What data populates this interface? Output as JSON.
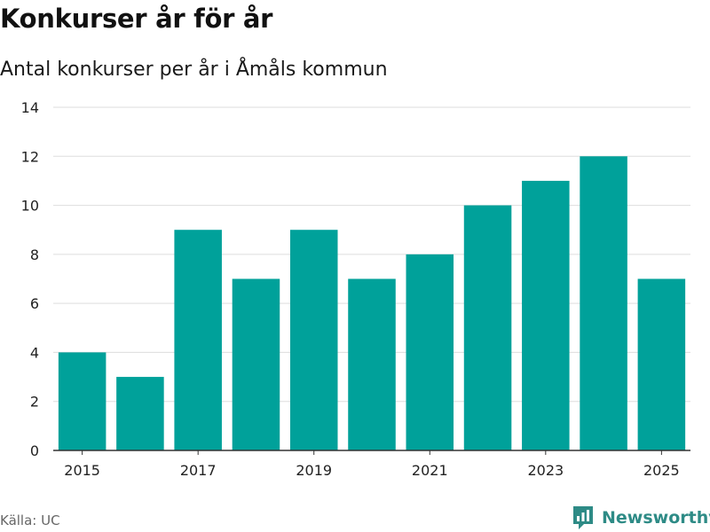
{
  "header": {
    "title": "Konkurser år för år",
    "subtitle": "Antal konkurser per år i Åmåls kommun"
  },
  "footer": {
    "source": "Källa: UC",
    "brand": "Newsworthy"
  },
  "colors": {
    "bar": "#00a19a",
    "grid": "#dddddd",
    "axis": "#333333",
    "brand": "#2e8b86"
  },
  "chart_data": {
    "type": "bar",
    "title": "Konkurser år för år",
    "subtitle": "Antal konkurser per år i Åmåls kommun",
    "xlabel": "",
    "ylabel": "",
    "categories": [
      "2015",
      "2016",
      "2017",
      "2018",
      "2019",
      "2020",
      "2021",
      "2022",
      "2023",
      "2024",
      "2025"
    ],
    "values": [
      4,
      3,
      9,
      7,
      9,
      7,
      8,
      10,
      11,
      12,
      7
    ],
    "x_tick_labels": [
      "2015",
      "2017",
      "2019",
      "2021",
      "2023",
      "2025"
    ],
    "y_ticks": [
      0,
      2,
      4,
      6,
      8,
      10,
      12,
      14
    ],
    "ylim": [
      0,
      14
    ],
    "grid": true,
    "legend": "none"
  }
}
